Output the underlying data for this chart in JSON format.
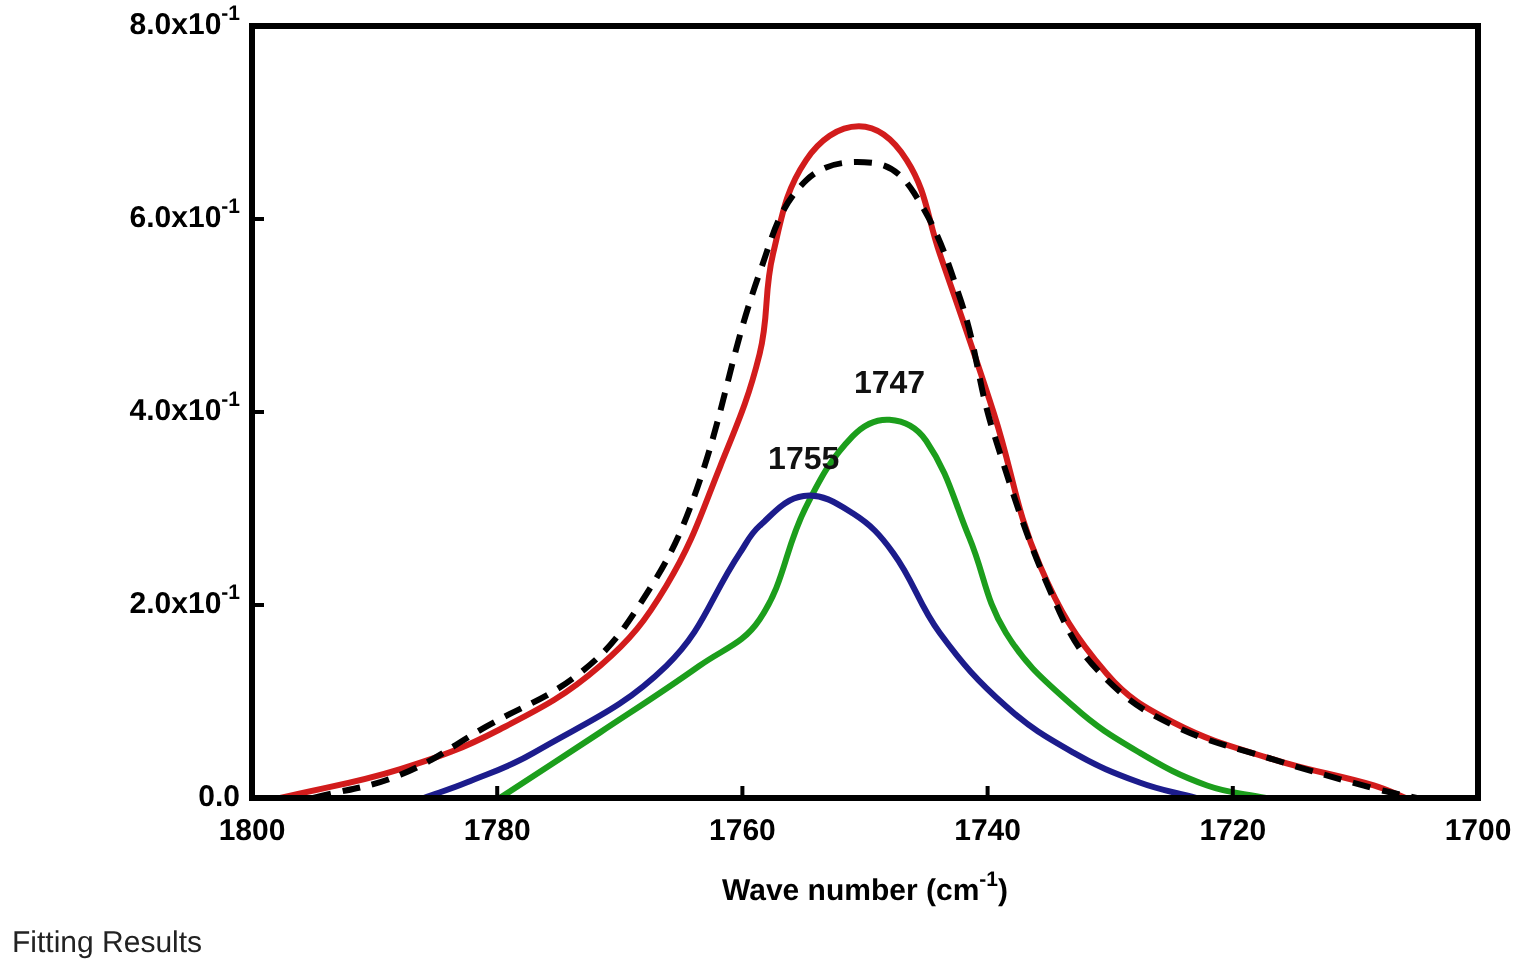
{
  "chart_data": {
    "type": "line",
    "xlabel": "Wave number (cm$^{-1}$)",
    "xlim": [
      1800,
      1700
    ],
    "xticks": [
      1800,
      1780,
      1760,
      1740,
      1720,
      1700
    ],
    "ylim": [
      0,
      0.8
    ],
    "yticks": [
      {
        "value": 0,
        "label": "0.0"
      },
      {
        "value": 0.2,
        "label": "2.0x10$^{-1}$"
      },
      {
        "value": 0.4,
        "label": "4.0x10$^{-1}$"
      },
      {
        "value": 0.6,
        "label": "6.0x10$^{-1}$"
      },
      {
        "value": 0.8,
        "label": "8.0x10$^{-1}$"
      }
    ],
    "grid": false,
    "legend": false,
    "marker": "none",
    "annotations": [
      {
        "text": "1755",
        "x": 1755,
        "y": 0.313
      },
      {
        "text": "1747",
        "x": 1748,
        "y": 0.392
      },
      "Fitting Results"
    ],
    "series": [
      {
        "color": "#000000",
        "line_style": "dashed",
        "x": [
          1795,
          1787.9,
          1780.9,
          1773.2,
          1768.4,
          1764,
          1758.6,
          1754.8,
          1749.3,
          1746,
          1742.2,
          1739.5,
          1734.1,
          1730.3,
          1724.8,
          1716.7,
          1708.5,
          1705
        ],
        "values": [
          0,
          0.024,
          0.074,
          0.13,
          0.2,
          0.31,
          0.544,
          0.64,
          0.658,
          0.627,
          0.516,
          0.378,
          0.192,
          0.123,
          0.075,
          0.04,
          0.01,
          0
        ]
      },
      {
        "color": "#1c1c8c",
        "line_style": "solid",
        "x": [
          1786,
          1782.5,
          1777,
          1766.2,
          1760.2,
          1758.6,
          1755,
          1751,
          1747.7,
          1743.9,
          1738.5,
          1733,
          1727.6,
          1723
        ],
        "values": [
          0,
          0.016,
          0.047,
          0.137,
          0.254,
          0.282,
          0.313,
          0.295,
          0.254,
          0.171,
          0.095,
          0.047,
          0.016,
          0
        ]
      },
      {
        "color": "#1c9e1c",
        "line_style": "solid",
        "x": [
          1779.8,
          1771.6,
          1763.5,
          1758.6,
          1754.8,
          1751,
          1748,
          1745,
          1741.5,
          1738.5,
          1733,
          1727.6,
          1722.1,
          1717.3
        ],
        "values": [
          0,
          0.068,
          0.137,
          0.185,
          0.302,
          0.375,
          0.392,
          0.37,
          0.27,
          0.171,
          0.095,
          0.047,
          0.013,
          0
        ]
      },
      {
        "color": "#d21c1c",
        "line_style": "solid",
        "x": [
          1797.7,
          1787.9,
          1779.8,
          1771.6,
          1766.2,
          1761.8,
          1758.6,
          1757.5,
          1754.8,
          1750.5,
          1746.6,
          1743.9,
          1739.5,
          1735.7,
          1730.3,
          1724.8,
          1716.7,
          1708.5,
          1705.9
        ],
        "values": [
          0,
          0.03,
          0.071,
          0.137,
          0.22,
          0.344,
          0.46,
          0.564,
          0.661,
          0.696,
          0.661,
          0.564,
          0.399,
          0.24,
          0.129,
          0.078,
          0.04,
          0.013,
          0
        ]
      }
    ]
  }
}
